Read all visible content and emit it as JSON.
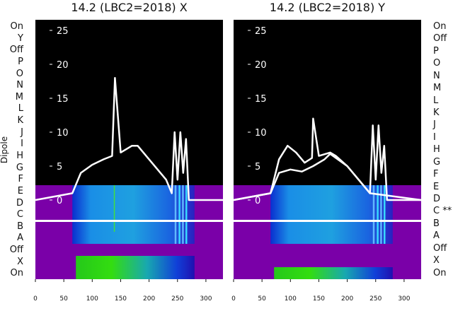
{
  "chart_data": [
    {
      "type": "heatmap",
      "title": "14.2 (LBC2=2018) X",
      "ylabel": "Dipole",
      "xlim": [
        0,
        330
      ],
      "xticks": [
        0,
        50,
        100,
        150,
        200,
        250,
        300
      ],
      "overlay_yticks": [
        0,
        5,
        10,
        15,
        20,
        25
      ],
      "rows": [
        "On",
        "Y",
        "Off",
        "P",
        "O",
        "N",
        "M",
        "L",
        "K",
        "J",
        "I",
        "H",
        "G",
        "F",
        "E",
        "D",
        "C",
        "B",
        "A",
        "Off",
        "X",
        "On"
      ],
      "marked_row": "",
      "active_x_range": [
        65,
        280
      ],
      "overlay_series": [
        {
          "x": [
            0,
            65,
            80,
            100,
            120,
            135,
            140,
            150,
            170,
            180,
            200,
            230,
            240,
            245,
            250,
            255,
            260,
            265,
            270,
            330
          ],
          "y": [
            0,
            1,
            4,
            5.2,
            6,
            6.5,
            18,
            7,
            8,
            8,
            6,
            3,
            1,
            10,
            3,
            10,
            4,
            9,
            0,
            0
          ]
        }
      ]
    },
    {
      "type": "heatmap",
      "title": "14.2 (LBC2=2018) Y",
      "ylabel": "",
      "xlim": [
        0,
        330
      ],
      "xticks": [
        0,
        50,
        100,
        150,
        200,
        250,
        300
      ],
      "overlay_yticks": [
        0,
        5,
        10,
        15,
        20,
        25
      ],
      "rows": [
        "On",
        "Off",
        "P",
        "O",
        "N",
        "M",
        "L",
        "K",
        "J",
        "I",
        "H",
        "G",
        "F",
        "E",
        "D",
        "C **",
        "B",
        "A",
        "Off",
        "X",
        "On"
      ],
      "marked_row": "C **",
      "active_x_range": [
        65,
        280
      ],
      "overlay_series": [
        {
          "x": [
            0,
            65,
            80,
            95,
            110,
            125,
            138,
            140,
            150,
            170,
            180,
            200,
            230,
            240,
            245,
            250,
            255,
            260,
            265,
            270,
            330
          ],
          "y": [
            0,
            1,
            6,
            8,
            7,
            5.5,
            6.2,
            12,
            6.5,
            7,
            6.5,
            5,
            2,
            1,
            11,
            3,
            11,
            4,
            8,
            0,
            0
          ]
        },
        {
          "x": [
            0,
            65,
            80,
            100,
            120,
            140,
            160,
            170,
            200,
            240,
            330
          ],
          "y": [
            0,
            1,
            4,
            4.5,
            4.2,
            5,
            6,
            6.8,
            5,
            1,
            0
          ]
        }
      ]
    }
  ]
}
